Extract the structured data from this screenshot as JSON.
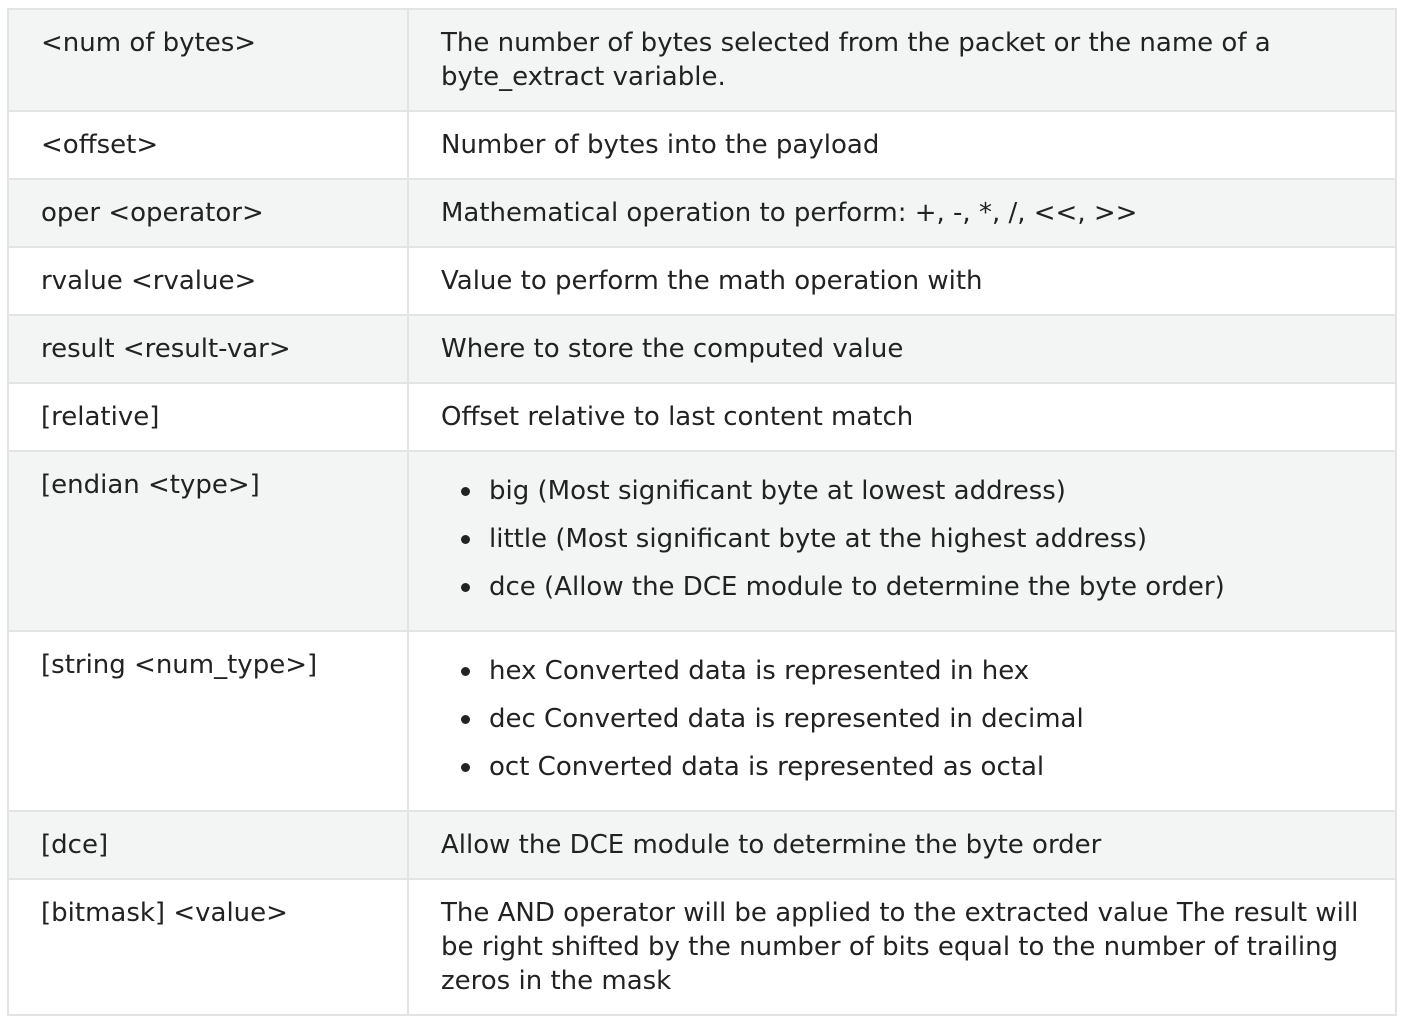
{
  "rows": [
    {
      "key": "<num of bytes>",
      "desc": "The number of bytes selected from the packet or the name of a byte_extract variable."
    },
    {
      "key": "<offset>",
      "desc": "Number of bytes into the payload"
    },
    {
      "key": "oper <operator>",
      "desc": "Mathematical operation to perform: +, -, *, /, <<, >>"
    },
    {
      "key": "rvalue <rvalue>",
      "desc": "Value to perform the math operation with"
    },
    {
      "key": "result <result-var>",
      "desc": "Where to store the computed value"
    },
    {
      "key": "[relative]",
      "desc": "Offset relative to last content match"
    },
    {
      "key": "[endian <type>]",
      "items": [
        "big (Most significant byte at lowest address)",
        "little (Most significant byte at the highest address)",
        "dce (Allow the DCE module to determine the byte order)"
      ]
    },
    {
      "key": "[string <num_type>]",
      "items": [
        "hex Converted data is represented in hex",
        "dec Converted data is represented in decimal",
        "oct Converted data is represented as octal"
      ]
    },
    {
      "key": "[dce]",
      "desc": "Allow the DCE module to determine the byte order"
    },
    {
      "key": "[bitmask] <value>",
      "desc": "The AND operator will be applied to the extracted value The result will be right shifted by the number of bits equal to the number of trailing zeros in the mask"
    }
  ]
}
